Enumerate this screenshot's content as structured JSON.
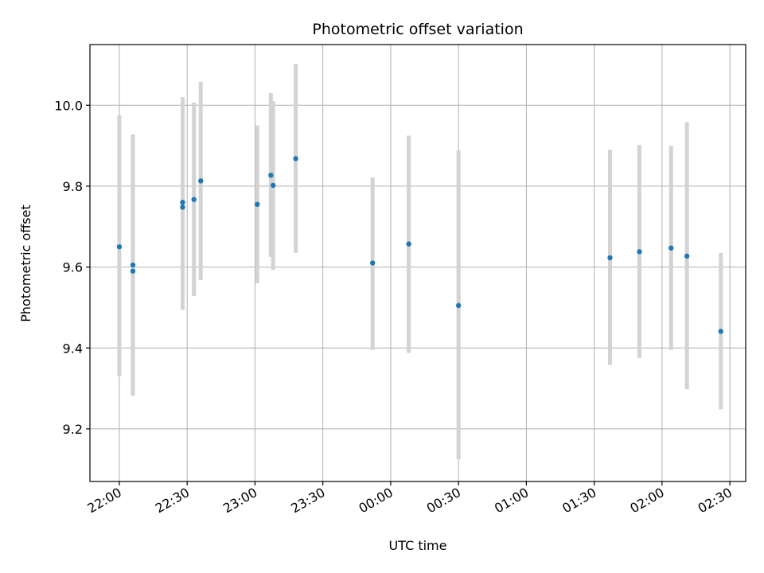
{
  "chart_data": {
    "type": "scatter",
    "title": "Photometric offset variation",
    "xlabel": "UTC time",
    "ylabel": "Photometric offset",
    "grid": true,
    "xlim": [
      "21:47",
      "02:37"
    ],
    "ylim": [
      9.07,
      10.15
    ],
    "x_ticks": [
      "22:00",
      "22:30",
      "23:00",
      "23:30",
      "00:00",
      "00:30",
      "01:00",
      "01:30",
      "02:00",
      "02:30"
    ],
    "y_ticks": [
      "9.2",
      "9.4",
      "9.6",
      "9.8",
      "10.0"
    ],
    "colors": {
      "point": "#1f77b4",
      "errorbar": "#d3d3d3",
      "grid": "#b0b0b0"
    },
    "points": [
      {
        "x": "22:00",
        "y": 9.65,
        "ylow": 9.33,
        "yhigh": 9.975
      },
      {
        "x": "22:06",
        "y": 9.605,
        "ylow": 9.282,
        "yhigh": 9.928
      },
      {
        "x": "22:06",
        "y": 9.59,
        "ylow": 9.297,
        "yhigh": 9.882
      },
      {
        "x": "22:28",
        "y": 9.76,
        "ylow": 9.5,
        "yhigh": 10.02
      },
      {
        "x": "22:28",
        "y": 9.748,
        "ylow": 9.495,
        "yhigh": 9.99
      },
      {
        "x": "22:33",
        "y": 9.767,
        "ylow": 9.528,
        "yhigh": 10.007
      },
      {
        "x": "22:36",
        "y": 9.813,
        "ylow": 9.568,
        "yhigh": 10.058
      },
      {
        "x": "23:01",
        "y": 9.755,
        "ylow": 9.56,
        "yhigh": 9.95
      },
      {
        "x": "23:07",
        "y": 9.827,
        "ylow": 9.625,
        "yhigh": 10.03
      },
      {
        "x": "23:08",
        "y": 9.802,
        "ylow": 9.593,
        "yhigh": 10.01
      },
      {
        "x": "23:18",
        "y": 9.868,
        "ylow": 9.635,
        "yhigh": 10.102
      },
      {
        "x": "23:52",
        "y": 9.61,
        "ylow": 9.395,
        "yhigh": 9.822
      },
      {
        "x": "00:08",
        "y": 9.657,
        "ylow": 9.388,
        "yhigh": 9.925
      },
      {
        "x": "00:30",
        "y": 9.505,
        "ylow": 9.125,
        "yhigh": 9.888
      },
      {
        "x": "01:37",
        "y": 9.623,
        "ylow": 9.358,
        "yhigh": 9.89
      },
      {
        "x": "01:50",
        "y": 9.638,
        "ylow": 9.375,
        "yhigh": 9.902
      },
      {
        "x": "02:04",
        "y": 9.647,
        "ylow": 9.395,
        "yhigh": 9.9
      },
      {
        "x": "02:11",
        "y": 9.627,
        "ylow": 9.298,
        "yhigh": 9.958
      },
      {
        "x": "02:26",
        "y": 9.441,
        "ylow": 9.248,
        "yhigh": 9.635
      }
    ]
  }
}
